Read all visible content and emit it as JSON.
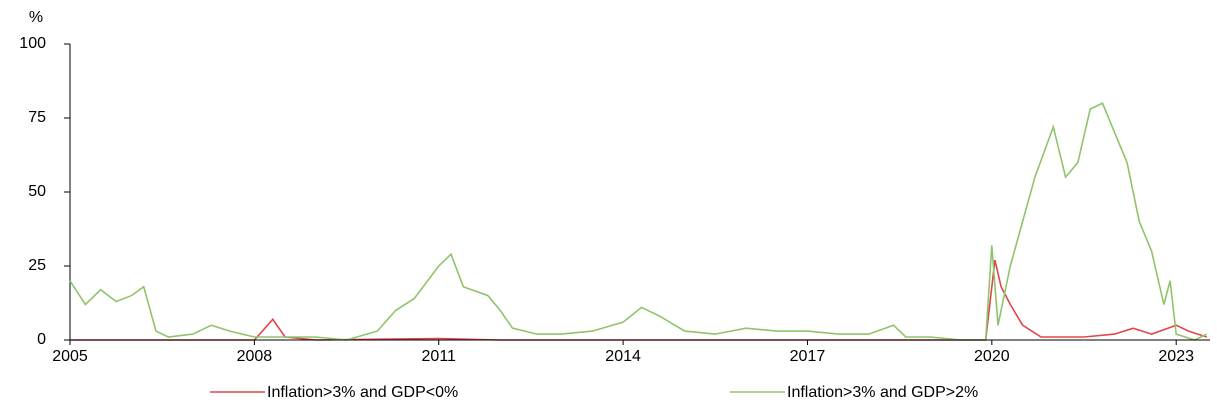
{
  "chart_data": {
    "type": "line",
    "y_label": "%",
    "xlim": [
      2005,
      2023.55
    ],
    "xticks": [
      2005,
      2008,
      2011,
      2014,
      2017,
      2020,
      2023
    ],
    "ylim": [
      0,
      100
    ],
    "yticks": [
      0,
      25,
      50,
      75,
      100
    ],
    "grid": false,
    "legend": "bottom",
    "series": [
      {
        "name": "Inflation>3% and GDP<0%",
        "color": "#e0464b",
        "x": [
          2005,
          2008,
          2008.3,
          2008.5,
          2009,
          2011,
          2012,
          2019.9,
          2020.05,
          2020.15,
          2020.3,
          2020.5,
          2020.8,
          2021.5,
          2022,
          2022.3,
          2022.6,
          2023,
          2023.2,
          2023.5
        ],
        "values": [
          0,
          0,
          7,
          1,
          0,
          0.5,
          0,
          0,
          27,
          18,
          12,
          5,
          1,
          1,
          2,
          4,
          2,
          5,
          3,
          1
        ]
      },
      {
        "name": "Inflation>3% and GDP>2%",
        "color": "#8fc46b",
        "x": [
          2005,
          2005.25,
          2005.5,
          2005.75,
          2006,
          2006.2,
          2006.4,
          2006.6,
          2007,
          2007.3,
          2007.6,
          2008,
          2008.5,
          2009,
          2009.5,
          2010,
          2010.3,
          2010.6,
          2011,
          2011.2,
          2011.4,
          2011.8,
          2012,
          2012.2,
          2012.6,
          2013,
          2013.5,
          2014,
          2014.3,
          2014.6,
          2015,
          2015.5,
          2016,
          2016.5,
          2017,
          2017.5,
          2018,
          2018.4,
          2018.6,
          2019,
          2019.5,
          2019.9,
          2020,
          2020.1,
          2020.3,
          2020.5,
          2020.7,
          2021,
          2021.2,
          2021.4,
          2021.6,
          2021.8,
          2022,
          2022.2,
          2022.4,
          2022.6,
          2022.8,
          2022.9,
          2023,
          2023.3,
          2023.5
        ],
        "values": [
          20,
          12,
          17,
          13,
          15,
          18,
          3,
          1,
          2,
          5,
          3,
          1,
          1,
          1,
          0,
          3,
          10,
          14,
          25,
          29,
          18,
          15,
          10,
          4,
          2,
          2,
          3,
          6,
          11,
          8,
          3,
          2,
          4,
          3,
          3,
          2,
          2,
          5,
          1,
          1,
          0,
          0,
          32,
          5,
          25,
          40,
          55,
          72,
          55,
          60,
          78,
          80,
          70,
          60,
          40,
          30,
          12,
          20,
          2,
          0,
          2
        ]
      }
    ]
  }
}
